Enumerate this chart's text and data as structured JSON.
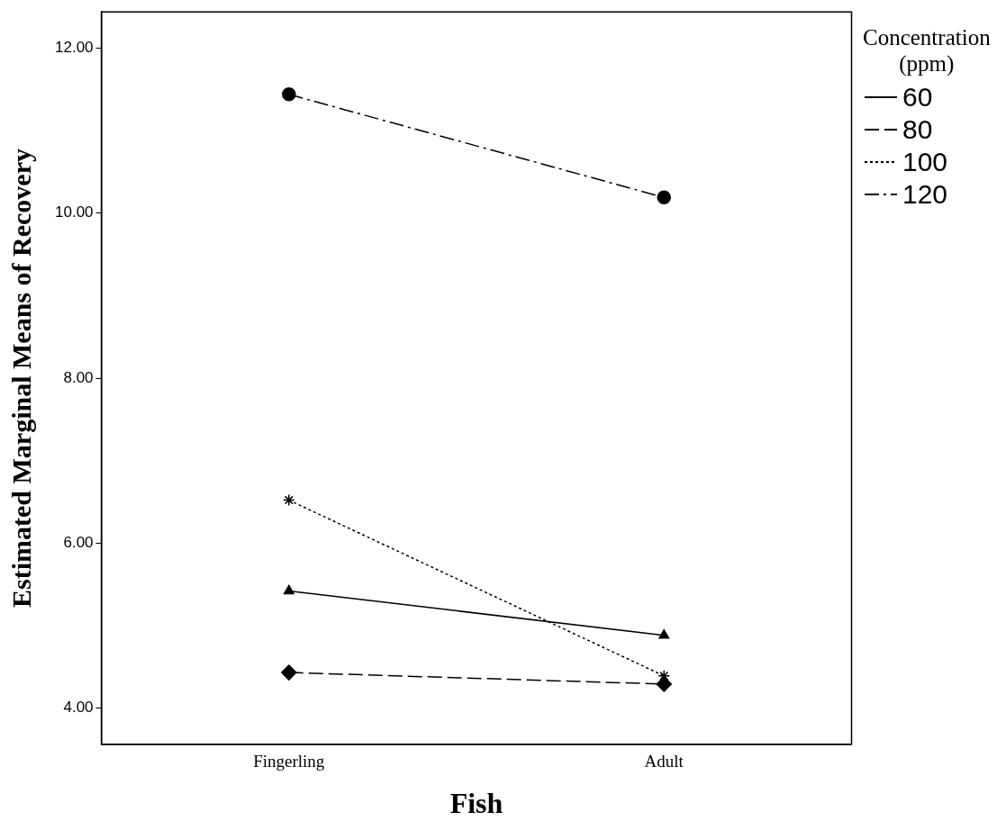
{
  "chart_data": {
    "type": "line",
    "xlabel": "Fish",
    "ylabel": "Estimated Marginal Means of Recovery",
    "legend_title": "Concentration\n(ppm)",
    "categories": [
      "Fingerling",
      "Adult"
    ],
    "series": [
      {
        "name": "60",
        "color": "#000000",
        "values": [
          5.42,
          4.88
        ],
        "marker": "triangle",
        "line_style": "solid"
      },
      {
        "name": "80",
        "color": "#000000",
        "values": [
          4.43,
          4.29
        ],
        "marker": "diamond",
        "line_style": "dashed"
      },
      {
        "name": "100",
        "color": "#000000",
        "values": [
          6.52,
          4.39
        ],
        "marker": "cross",
        "line_style": "dotted"
      },
      {
        "name": "120",
        "color": "#000000",
        "values": [
          11.44,
          10.19
        ],
        "marker": "circle",
        "line_style": "dashdot"
      }
    ],
    "ylim": [
      3.56,
      12.44
    ],
    "yticks": [
      {
        "value": 4,
        "label": "4.00"
      },
      {
        "value": 6,
        "label": "6.00"
      },
      {
        "value": 8,
        "label": "8.00"
      },
      {
        "value": 10,
        "label": "10.00"
      },
      {
        "value": 12,
        "label": "12.00"
      }
    ],
    "grid": false,
    "legend": "right"
  }
}
